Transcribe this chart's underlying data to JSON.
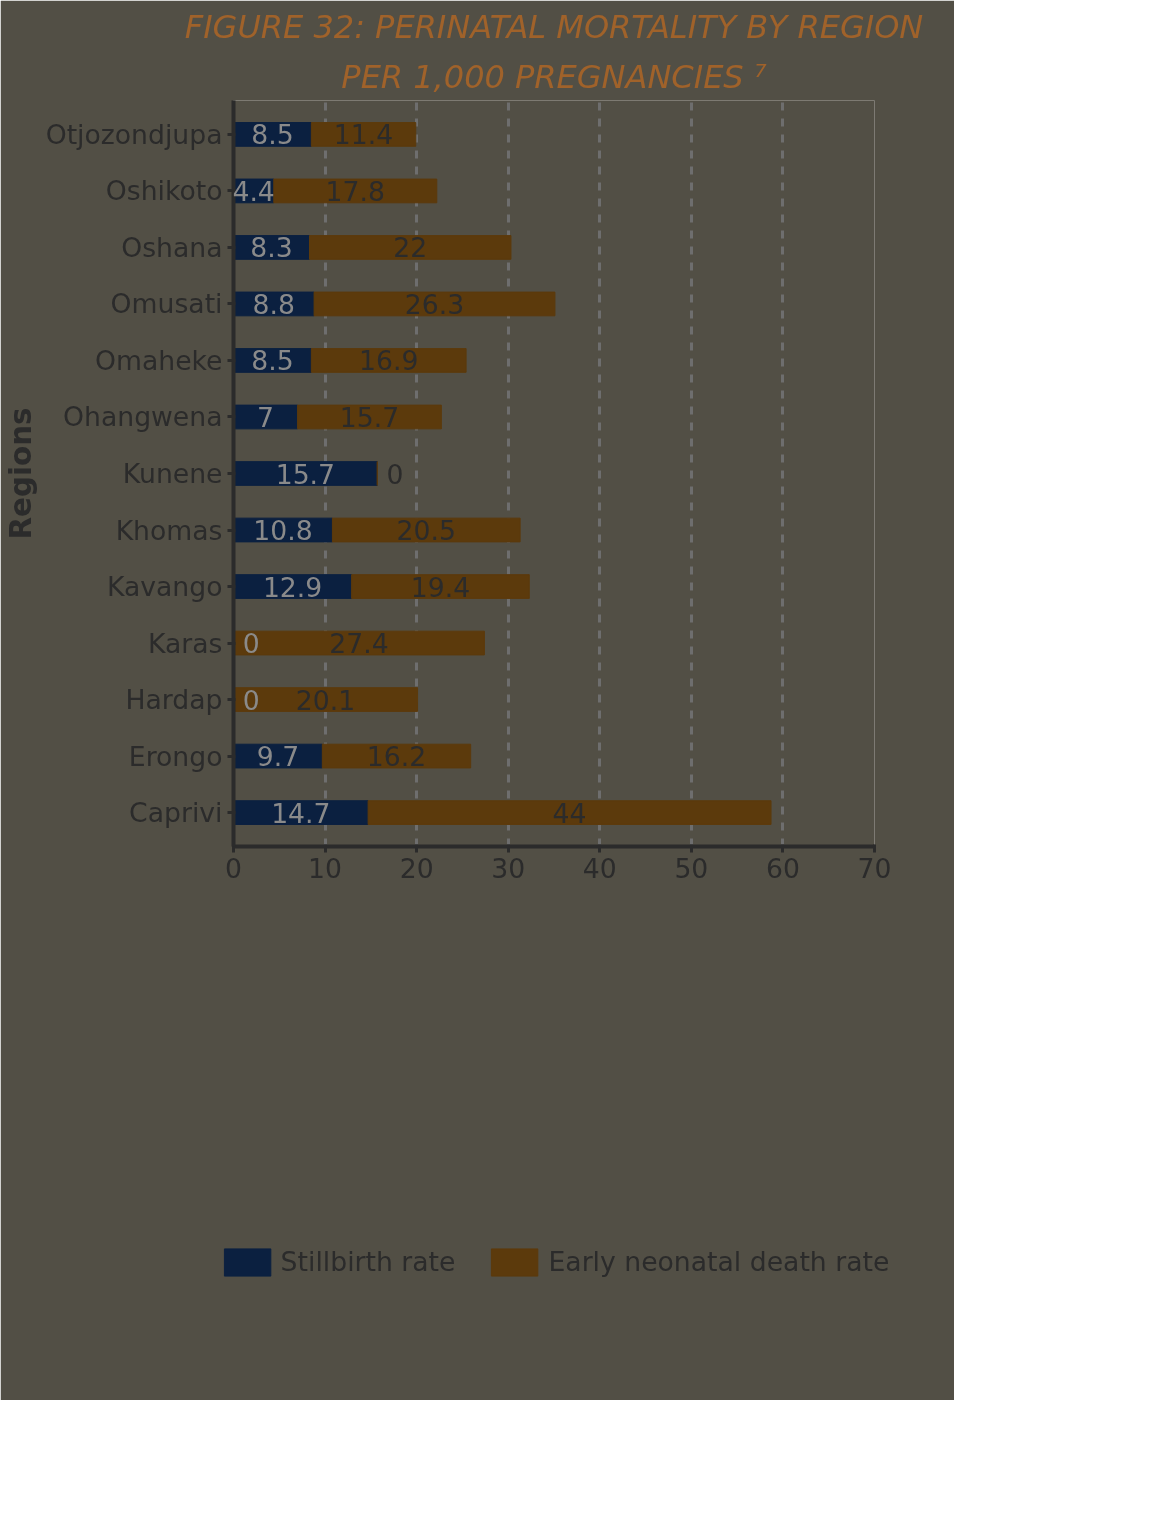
{
  "chart_data": {
    "type": "bar",
    "orientation": "horizontal",
    "stacked": true,
    "title": "FIGURE 32: PERINATAL MORTALITY BY REGION",
    "subtitle": "PER 1,000 PREGNANCIES ⁷",
    "ylabel": "Regions",
    "categories": [
      "Otjozondjupa",
      "Oshikoto",
      "Oshana",
      "Omusati",
      "Omaheke",
      "Ohangwena",
      "Kunene",
      "Khomas",
      "Kavango",
      "Karas",
      "Hardap",
      "Erongo",
      "Caprivi"
    ],
    "series": [
      {
        "name": "Stillbirth rate",
        "color": "#0b2040",
        "values": [
          8.5,
          4.4,
          8.3,
          8.8,
          8.5,
          7,
          15.7,
          10.8,
          12.9,
          0,
          0,
          9.7,
          14.7
        ]
      },
      {
        "name": "Early neonatal death rate",
        "color": "#5c3a0c",
        "values": [
          11.4,
          17.8,
          22,
          26.3,
          16.9,
          15.7,
          0,
          20.5,
          19.4,
          27.4,
          20.1,
          16.2,
          44
        ]
      }
    ],
    "xlim": [
      0,
      70
    ],
    "xticks": [
      0,
      10,
      20,
      30,
      40,
      50,
      60,
      70
    ],
    "grid": "x",
    "legend": "bottom",
    "data_labels": true
  }
}
